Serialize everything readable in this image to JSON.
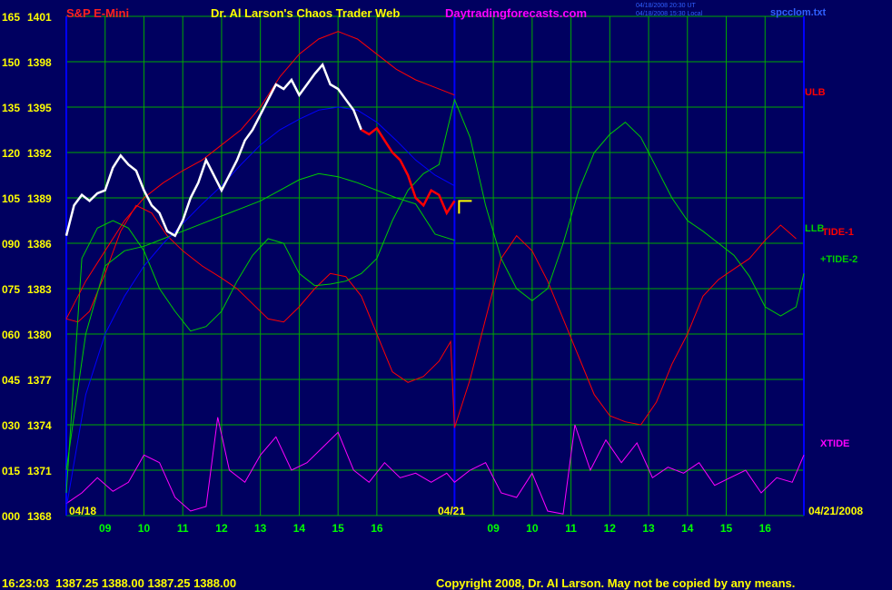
{
  "header": {
    "symbol": "S&P E-Mini",
    "title": "Dr. Al Larson's Chaos Trader Web",
    "site": "Daytradingforecasts.com",
    "timestamp_ut": "04/18/2008 20:30 UT",
    "timestamp_local": "04/18/2008 15:30 Local",
    "filename": "spcclom.txt"
  },
  "footer": {
    "quote": "16:23:03  1387.25 1388.00 1387.25 1388.00",
    "copyright": "Copyright 2008, Dr. Al Larson. May not be copied by any means."
  },
  "colors": {
    "background": "#000060",
    "grid": "#00aa00",
    "price": "#ffffff",
    "recent_price": "#ff0000",
    "ulb": "#ff0000",
    "llb": "#00cc00",
    "tide1": "#ff0000",
    "tide2": "#00cc00",
    "xtide": "#ff00ff",
    "moving_average": "#0000ff",
    "labels_left": "#ffff00",
    "time_labels": "#00ff00",
    "title_red": "#ff2020",
    "title_yellow": "#ffff00",
    "title_magenta": "#ff00ff",
    "marker": "#ffff00"
  },
  "chart_data": {
    "type": "line",
    "y_left_labels": [
      {
        "osc": "165",
        "price": "1401"
      },
      {
        "osc": "150",
        "price": "1398"
      },
      {
        "osc": "135",
        "price": "1395"
      },
      {
        "osc": "120",
        "price": "1392"
      },
      {
        "osc": "105",
        "price": "1389"
      },
      {
        "osc": "090",
        "price": "1386"
      },
      {
        "osc": "075",
        "price": "1383"
      },
      {
        "osc": "060",
        "price": "1380"
      },
      {
        "osc": "045",
        "price": "1377"
      },
      {
        "osc": "030",
        "price": "1374"
      },
      {
        "osc": "015",
        "price": "1371"
      },
      {
        "osc": "000",
        "price": "1368"
      }
    ],
    "price_range": [
      1368,
      1401
    ],
    "osc_range": [
      0,
      165
    ],
    "x_tick_labels": [
      "09",
      "10",
      "11",
      "12",
      "13",
      "14",
      "15",
      "16",
      "09",
      "10",
      "11",
      "12",
      "13",
      "14",
      "15",
      "16"
    ],
    "date_labels": {
      "start": "04/18",
      "middle": "04/21",
      "end": "04/21/2008"
    },
    "series_labels": {
      "ulb": "ULB",
      "llb": "LLB",
      "tide1": "TIDE-1",
      "tide2": "+TIDE-2",
      "xtide": "XTIDE"
    },
    "grid": true,
    "price_white": [
      [
        0,
        1386.5
      ],
      [
        0.2,
        1388.5
      ],
      [
        0.4,
        1389.2
      ],
      [
        0.6,
        1388.8
      ],
      [
        0.8,
        1389.3
      ],
      [
        1.0,
        1389.5
      ],
      [
        1.2,
        1391.0
      ],
      [
        1.4,
        1391.8
      ],
      [
        1.6,
        1391.2
      ],
      [
        1.8,
        1390.8
      ],
      [
        2.0,
        1389.5
      ],
      [
        2.2,
        1388.5
      ],
      [
        2.4,
        1388.0
      ],
      [
        2.6,
        1386.8
      ],
      [
        2.8,
        1386.5
      ],
      [
        3.0,
        1387.5
      ],
      [
        3.2,
        1389.0
      ],
      [
        3.4,
        1390.0
      ],
      [
        3.6,
        1391.5
      ],
      [
        3.8,
        1390.5
      ],
      [
        4.0,
        1389.5
      ],
      [
        4.2,
        1390.5
      ],
      [
        4.4,
        1391.5
      ],
      [
        4.6,
        1392.8
      ],
      [
        4.8,
        1393.5
      ],
      [
        5.0,
        1394.5
      ],
      [
        5.2,
        1395.5
      ],
      [
        5.4,
        1396.5
      ],
      [
        5.6,
        1396.2
      ],
      [
        5.8,
        1396.8
      ],
      [
        6.0,
        1395.8
      ],
      [
        6.2,
        1396.5
      ],
      [
        6.4,
        1397.2
      ],
      [
        6.6,
        1397.8
      ],
      [
        6.8,
        1396.5
      ],
      [
        7.0,
        1396.2
      ],
      [
        7.2,
        1395.5
      ],
      [
        7.4,
        1394.8
      ],
      [
        7.6,
        1393.5
      ]
    ],
    "price_red": [
      [
        7.6,
        1393.5
      ],
      [
        7.8,
        1393.2
      ],
      [
        8.0,
        1393.6
      ],
      [
        8.2,
        1392.8
      ],
      [
        8.4,
        1392.0
      ],
      [
        8.6,
        1391.5
      ],
      [
        8.8,
        1390.5
      ],
      [
        9.0,
        1389.0
      ],
      [
        9.2,
        1388.5
      ],
      [
        9.4,
        1389.5
      ],
      [
        9.6,
        1389.2
      ],
      [
        9.8,
        1388.0
      ],
      [
        10.0,
        1388.8
      ]
    ],
    "ulb": [
      [
        0,
        1381
      ],
      [
        0.5,
        1383.5
      ],
      [
        1,
        1385.5
      ],
      [
        1.5,
        1387.5
      ],
      [
        2,
        1389
      ],
      [
        2.5,
        1390
      ],
      [
        3,
        1390.8
      ],
      [
        3.5,
        1391.5
      ],
      [
        4,
        1392.5
      ],
      [
        4.5,
        1393.5
      ],
      [
        5,
        1395
      ],
      [
        5.5,
        1397
      ],
      [
        6,
        1398.5
      ],
      [
        6.5,
        1399.5
      ],
      [
        7,
        1400
      ],
      [
        7.5,
        1399.5
      ],
      [
        8,
        1398.5
      ],
      [
        8.5,
        1397.5
      ],
      [
        9,
        1396.8
      ],
      [
        9.5,
        1396.3
      ],
      [
        10,
        1395.8
      ]
    ],
    "moving_average": [
      [
        0,
        1368.5
      ],
      [
        0.5,
        1376
      ],
      [
        1,
        1380
      ],
      [
        1.5,
        1382.5
      ],
      [
        2,
        1384.5
      ],
      [
        2.5,
        1386
      ],
      [
        3,
        1387.3
      ],
      [
        3.5,
        1388.6
      ],
      [
        4,
        1389.8
      ],
      [
        4.5,
        1391.2
      ],
      [
        5,
        1392.5
      ],
      [
        5.5,
        1393.5
      ],
      [
        6,
        1394.2
      ],
      [
        6.5,
        1394.8
      ],
      [
        7,
        1395
      ],
      [
        7.5,
        1394.8
      ],
      [
        8,
        1394
      ],
      [
        8.5,
        1392.8
      ],
      [
        9,
        1391.5
      ],
      [
        9.5,
        1390.5
      ],
      [
        10,
        1389.8
      ]
    ],
    "llb": [
      [
        0,
        1371
      ],
      [
        0.5,
        1380
      ],
      [
        1,
        1384.5
      ],
      [
        1.5,
        1385.5
      ],
      [
        2,
        1385.8
      ],
      [
        2.5,
        1386.3
      ],
      [
        3,
        1386.8
      ],
      [
        3.5,
        1387.3
      ],
      [
        4,
        1387.8
      ],
      [
        4.5,
        1388.3
      ],
      [
        5,
        1388.8
      ],
      [
        5.5,
        1389.5
      ],
      [
        6,
        1390.2
      ],
      [
        6.5,
        1390.6
      ],
      [
        7,
        1390.4
      ],
      [
        7.5,
        1390
      ],
      [
        8,
        1389.5
      ],
      [
        8.5,
        1389
      ],
      [
        9,
        1388.6
      ],
      [
        9.5,
        1386.6
      ],
      [
        10,
        1386.2
      ]
    ],
    "tide1": [
      [
        0,
        1381
      ],
      [
        0.3,
        1380.8
      ],
      [
        0.6,
        1381.5
      ],
      [
        1,
        1384
      ],
      [
        1.4,
        1386.8
      ],
      [
        1.8,
        1388.5
      ],
      [
        2.2,
        1388
      ],
      [
        2.6,
        1386.5
      ],
      [
        3,
        1385.5
      ],
      [
        3.5,
        1384.5
      ],
      [
        4,
        1383.7
      ],
      [
        4.4,
        1383
      ],
      [
        4.8,
        1382
      ],
      [
        5.2,
        1381
      ],
      [
        5.6,
        1380.8
      ],
      [
        6.0,
        1381.8
      ],
      [
        6.4,
        1383
      ],
      [
        6.8,
        1384
      ],
      [
        7.2,
        1383.8
      ],
      [
        7.6,
        1382.5
      ],
      [
        8.0,
        1380
      ],
      [
        8.4,
        1377.5
      ],
      [
        8.8,
        1376.8
      ],
      [
        9.2,
        1377.2
      ],
      [
        9.6,
        1378.2
      ],
      [
        9.9,
        1379.5
      ],
      [
        10,
        1373.8
      ],
      [
        10.4,
        1377
      ],
      [
        10.8,
        1381
      ],
      [
        11.2,
        1385
      ],
      [
        11.6,
        1386.5
      ],
      [
        12,
        1385.5
      ],
      [
        12.4,
        1383.5
      ],
      [
        12.8,
        1381
      ],
      [
        13.2,
        1378.5
      ],
      [
        13.6,
        1376
      ],
      [
        14,
        1374.6
      ],
      [
        14.4,
        1374.2
      ],
      [
        14.8,
        1374
      ],
      [
        15.2,
        1375.5
      ],
      [
        15.6,
        1378
      ],
      [
        16,
        1380
      ],
      [
        16.4,
        1382.5
      ],
      [
        16.8,
        1383.6
      ],
      [
        17.2,
        1384.3
      ],
      [
        17.6,
        1385
      ],
      [
        18,
        1386.2
      ],
      [
        18.4,
        1387.2
      ],
      [
        18.8,
        1386.3
      ]
    ],
    "tide2": [
      [
        0,
        1369.5
      ],
      [
        0.4,
        1385
      ],
      [
        0.8,
        1387
      ],
      [
        1.2,
        1387.5
      ],
      [
        1.6,
        1387
      ],
      [
        2.0,
        1385.5
      ],
      [
        2.4,
        1383
      ],
      [
        2.8,
        1381.5
      ],
      [
        3.2,
        1380.2
      ],
      [
        3.6,
        1380.5
      ],
      [
        4.0,
        1381.5
      ],
      [
        4.4,
        1383.5
      ],
      [
        4.8,
        1385.2
      ],
      [
        5.2,
        1386.3
      ],
      [
        5.6,
        1386
      ],
      [
        6.0,
        1384
      ],
      [
        6.4,
        1383.2
      ],
      [
        6.8,
        1383.3
      ],
      [
        7.2,
        1383.5
      ],
      [
        7.6,
        1384
      ],
      [
        8.0,
        1385
      ],
      [
        8.4,
        1387.5
      ],
      [
        8.8,
        1389.5
      ],
      [
        9.2,
        1390.6
      ],
      [
        9.6,
        1391.2
      ],
      [
        10,
        1395.5
      ],
      [
        10.4,
        1393
      ],
      [
        10.8,
        1388.5
      ],
      [
        11.2,
        1385
      ],
      [
        11.6,
        1383
      ],
      [
        12,
        1382.2
      ],
      [
        12.4,
        1383
      ],
      [
        12.8,
        1386
      ],
      [
        13.2,
        1389.5
      ],
      [
        13.6,
        1392
      ],
      [
        14,
        1393.2
      ],
      [
        14.4,
        1394
      ],
      [
        14.8,
        1393
      ],
      [
        15.2,
        1391
      ],
      [
        15.6,
        1389
      ],
      [
        16,
        1387.5
      ],
      [
        16.4,
        1386.8
      ],
      [
        16.8,
        1386
      ],
      [
        17.2,
        1385.2
      ],
      [
        17.6,
        1383.8
      ],
      [
        18.0,
        1381.8
      ],
      [
        18.4,
        1381.2
      ],
      [
        18.8,
        1381.8
      ],
      [
        19.0,
        1384
      ]
    ],
    "xtide": [
      [
        0,
        1368.8
      ],
      [
        0.4,
        1369.5
      ],
      [
        0.8,
        1370.5
      ],
      [
        1.2,
        1369.6
      ],
      [
        1.6,
        1370.2
      ],
      [
        2.0,
        1372
      ],
      [
        2.4,
        1371.5
      ],
      [
        2.8,
        1369.2
      ],
      [
        3.2,
        1368.3
      ],
      [
        3.6,
        1368.6
      ],
      [
        3.9,
        1374.5
      ],
      [
        4.2,
        1371
      ],
      [
        4.6,
        1370.2
      ],
      [
        5.0,
        1372
      ],
      [
        5.4,
        1373.2
      ],
      [
        5.8,
        1371
      ],
      [
        6.2,
        1371.5
      ],
      [
        6.6,
        1372.5
      ],
      [
        7.0,
        1373.5
      ],
      [
        7.4,
        1371
      ],
      [
        7.8,
        1370.2
      ],
      [
        8.2,
        1371.5
      ],
      [
        8.6,
        1370.5
      ],
      [
        9.0,
        1370.8
      ],
      [
        9.4,
        1370.2
      ],
      [
        9.8,
        1370.8
      ],
      [
        10.0,
        1370.2
      ],
      [
        10.4,
        1371
      ],
      [
        10.8,
        1371.5
      ],
      [
        11.2,
        1369.5
      ],
      [
        11.6,
        1369.2
      ],
      [
        12.0,
        1370.8
      ],
      [
        12.4,
        1368.3
      ],
      [
        12.8,
        1368.1
      ],
      [
        13.1,
        1374
      ],
      [
        13.5,
        1371
      ],
      [
        13.9,
        1373
      ],
      [
        14.3,
        1371.5
      ],
      [
        14.7,
        1372.8
      ],
      [
        15.1,
        1370.5
      ],
      [
        15.5,
        1371.2
      ],
      [
        15.9,
        1370.8
      ],
      [
        16.3,
        1371.5
      ],
      [
        16.7,
        1370
      ],
      [
        17.1,
        1370.5
      ],
      [
        17.5,
        1371
      ],
      [
        17.9,
        1369.5
      ],
      [
        18.3,
        1370.5
      ],
      [
        18.7,
        1370.2
      ],
      [
        19.0,
        1372
      ]
    ],
    "vertical_day_marker_hour": 10
  }
}
